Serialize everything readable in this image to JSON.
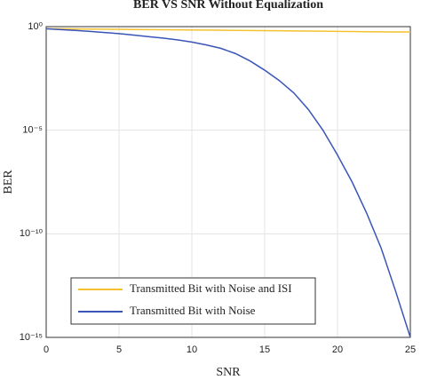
{
  "chart_data": {
    "type": "line",
    "title": "BER VS SNR Without Equalization",
    "xlabel": "SNR",
    "ylabel": "BER",
    "x": [
      0,
      1,
      2,
      3,
      4,
      5,
      6,
      7,
      8,
      9,
      10,
      11,
      12,
      13,
      14,
      15,
      16,
      17,
      18,
      19,
      20,
      21,
      22,
      23,
      24,
      25
    ],
    "series": [
      {
        "name": "Transmitted Bit with Noise and ISI",
        "color": "#f5c12e",
        "values": [
          0.79,
          0.78,
          0.77,
          0.76,
          0.75,
          0.74,
          0.73,
          0.72,
          0.71,
          0.7,
          0.69,
          0.68,
          0.67,
          0.66,
          0.65,
          0.64,
          0.63,
          0.62,
          0.61,
          0.6,
          0.59,
          0.58,
          0.57,
          0.56,
          0.55,
          0.55
        ]
      },
      {
        "name": "Transmitted Bit with Noise",
        "color": "#3a55b8",
        "values": [
          0.79,
          0.72,
          0.66,
          0.59,
          0.52,
          0.46,
          0.39,
          0.33,
          0.28,
          0.23,
          0.18,
          0.13,
          0.089,
          0.05,
          0.022,
          0.0079,
          0.0025,
          0.00063,
          0.0001,
          1e-05,
          6.3e-07,
          3.2e-08,
          1e-09,
          2e-11,
          1.6e-13,
          1e-15
        ]
      }
    ],
    "xlim": [
      0,
      25
    ],
    "xticks": [
      0,
      5,
      10,
      15,
      20,
      25
    ],
    "ylim": [
      1e-15,
      1
    ],
    "yscale": "log",
    "yticks": [
      {
        "value": 1e-15,
        "label": "10⁻¹⁵"
      },
      {
        "value": 1e-10,
        "label": "10⁻¹⁰"
      },
      {
        "value": 1e-05,
        "label": "10⁻⁵"
      },
      {
        "value": 1,
        "label": "10⁰"
      }
    ],
    "grid": true,
    "legend": "lower left"
  }
}
